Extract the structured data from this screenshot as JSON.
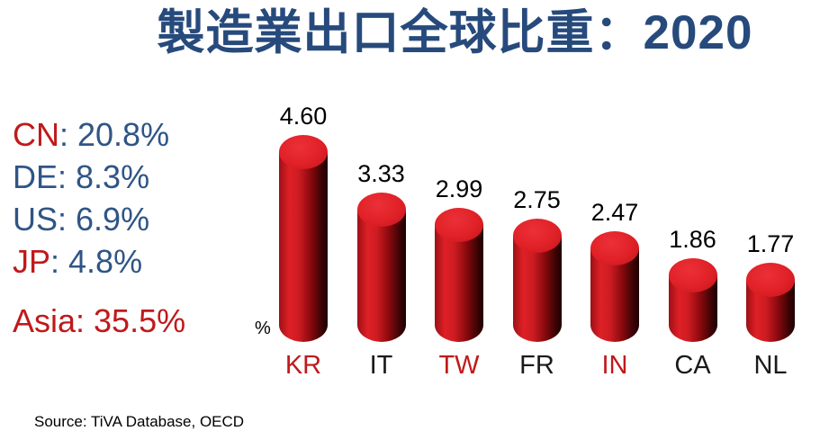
{
  "title": "製造業出口全球比重：2020",
  "colors": {
    "title_blue": "#274a7c",
    "text_blue": "#2f5585",
    "text_red": "#c0191b",
    "axis_black": "#1a1a1a",
    "bar_red": "#e02127"
  },
  "stats": {
    "lines": [
      {
        "code": "CN",
        "rest": ": 20.8%",
        "code_color": "#c0191b",
        "rest_color": "#2f5585",
        "gap_before": false
      },
      {
        "code": "DE",
        "rest": ": 8.3%",
        "code_color": "#2f5585",
        "rest_color": "#2f5585",
        "gap_before": false
      },
      {
        "code": "US",
        "rest": ": 6.9%",
        "code_color": "#2f5585",
        "rest_color": "#2f5585",
        "gap_before": false
      },
      {
        "code": "JP",
        "rest": ": 4.8%",
        "code_color": "#c0191b",
        "rest_color": "#2f5585",
        "gap_before": false
      },
      {
        "code": "Asia",
        "rest": ": 35.5%",
        "code_color": "#c0191b",
        "rest_color": "#c0191b",
        "gap_before": true
      }
    ]
  },
  "chart_data": {
    "type": "bar",
    "style": "3d-cylinder",
    "title": "製造業出口全球比重：2020",
    "categories": [
      "KR",
      "IT",
      "TW",
      "FR",
      "IN",
      "CA",
      "NL"
    ],
    "values": [
      4.6,
      3.33,
      2.99,
      2.75,
      2.47,
      1.86,
      1.77
    ],
    "value_labels": [
      "4.60",
      "3.33",
      "2.99",
      "2.75",
      "2.47",
      "1.86",
      "1.77"
    ],
    "category_colors": [
      "#c0191b",
      "#1a1a1a",
      "#c0191b",
      "#1a1a1a",
      "#c0191b",
      "#1a1a1a",
      "#1a1a1a"
    ],
    "unit_label": "%",
    "xlabel": "",
    "ylabel": "%",
    "ylim": [
      0,
      5
    ],
    "grid": false,
    "legend": false,
    "bar_color": "#e02127"
  },
  "source": "Source: TiVA Database, OECD"
}
